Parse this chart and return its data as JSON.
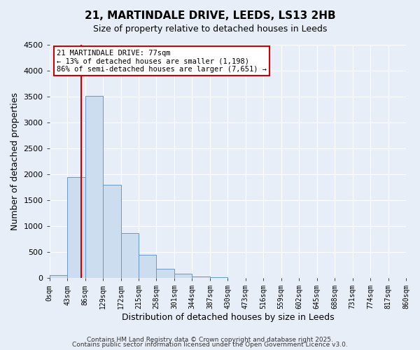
{
  "title": "21, MARTINDALE DRIVE, LEEDS, LS13 2HB",
  "subtitle": "Size of property relative to detached houses in Leeds",
  "xlabel": "Distribution of detached houses by size in Leeds",
  "ylabel": "Number of detached properties",
  "bar_color": "#ccddf0",
  "bar_edge_color": "#6699cc",
  "background_color": "#e8eef8",
  "plot_bg_color": "#e8eef8",
  "grid_color": "#ffffff",
  "vline_color": "#cc0000",
  "vline_x": 77,
  "annotation_box_edgecolor": "#cc0000",
  "annotation_title": "21 MARTINDALE DRIVE: 77sqm",
  "annotation_line1": "← 13% of detached houses are smaller (1,198)",
  "annotation_line2": "86% of semi-detached houses are larger (7,651) →",
  "footer1": "Contains HM Land Registry data © Crown copyright and database right 2025.",
  "footer2": "Contains public sector information licensed under the Open Government Licence v3.0.",
  "bin_edges": [
    0,
    43,
    86,
    129,
    172,
    215,
    258,
    301,
    344,
    387,
    430,
    473,
    516,
    559,
    602,
    645,
    688,
    731,
    774,
    817,
    860
  ],
  "bin_labels": [
    "0sqm",
    "43sqm",
    "86sqm",
    "129sqm",
    "172sqm",
    "215sqm",
    "258sqm",
    "301sqm",
    "344sqm",
    "387sqm",
    "430sqm",
    "473sqm",
    "516sqm",
    "559sqm",
    "602sqm",
    "645sqm",
    "688sqm",
    "731sqm",
    "774sqm",
    "817sqm",
    "860sqm"
  ],
  "counts": [
    50,
    1950,
    3520,
    1800,
    860,
    450,
    175,
    85,
    30,
    10,
    0,
    0,
    0,
    0,
    0,
    0,
    0,
    0,
    0,
    0
  ],
  "ylim": [
    0,
    4500
  ],
  "yticks": [
    0,
    500,
    1000,
    1500,
    2000,
    2500,
    3000,
    3500,
    4000,
    4500
  ]
}
